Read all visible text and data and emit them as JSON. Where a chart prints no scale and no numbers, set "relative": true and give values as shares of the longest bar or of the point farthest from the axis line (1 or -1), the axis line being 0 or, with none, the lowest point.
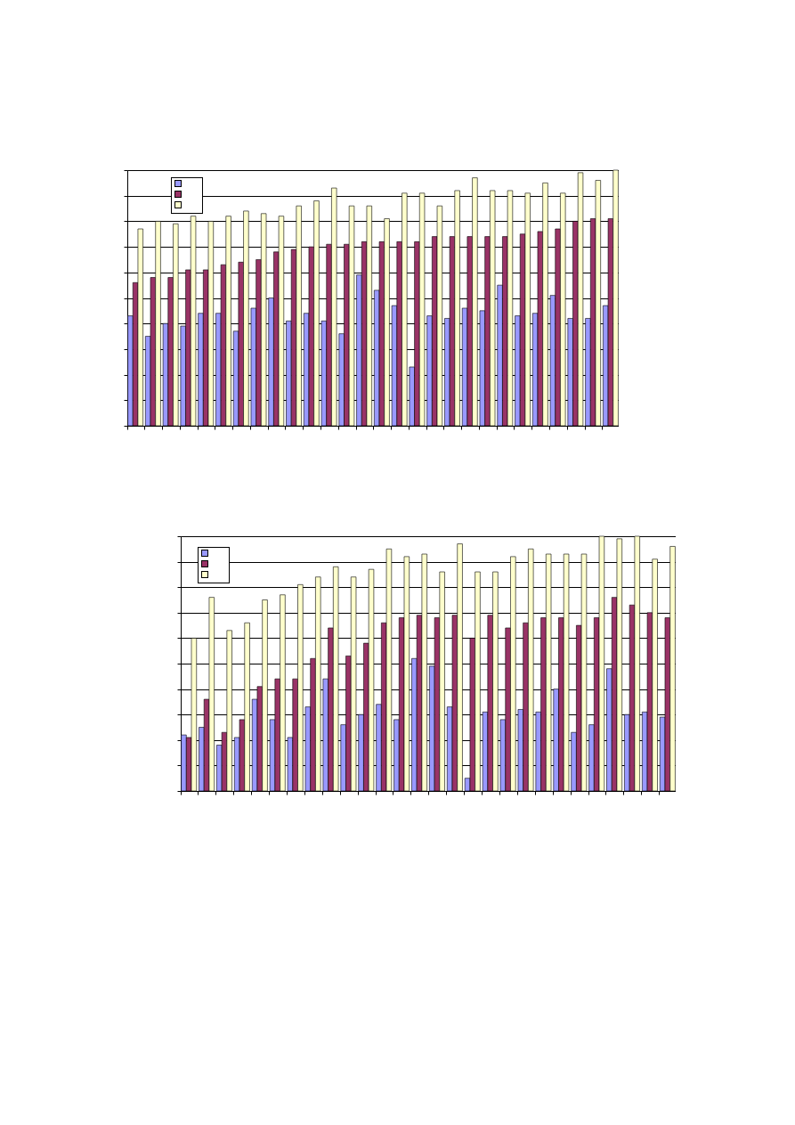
{
  "chart_data": [
    {
      "type": "bar",
      "relative": true,
      "grid": "y",
      "categories": [
        null,
        null,
        null,
        null,
        null,
        null,
        null,
        null,
        null,
        null,
        null,
        null,
        null,
        null,
        null,
        null,
        null,
        null,
        null,
        null,
        null,
        null,
        null,
        null,
        null,
        null,
        null,
        null
      ],
      "series": [
        {
          "color": "#9999ff",
          "values": [
            0.43,
            0.35,
            0.4,
            0.39,
            0.44,
            0.44,
            0.37,
            0.46,
            0.5,
            0.41,
            0.44,
            0.41,
            0.36,
            0.59,
            0.53,
            0.47,
            0.23,
            0.43,
            0.42,
            0.46,
            0.45,
            0.55,
            0.43,
            0.44,
            0.51,
            0.42,
            0.42,
            0.47
          ]
        },
        {
          "color": "#993366",
          "values": [
            0.56,
            0.58,
            0.58,
            0.61,
            0.61,
            0.63,
            0.64,
            0.65,
            0.68,
            0.69,
            0.7,
            0.71,
            0.71,
            0.72,
            0.72,
            0.72,
            0.72,
            0.74,
            0.74,
            0.74,
            0.74,
            0.74,
            0.75,
            0.76,
            0.77,
            0.8,
            0.81,
            0.81
          ]
        },
        {
          "color": "#ffffcc",
          "values": [
            0.77,
            0.8,
            0.79,
            0.82,
            0.8,
            0.82,
            0.84,
            0.83,
            0.82,
            0.86,
            0.88,
            0.93,
            0.86,
            0.86,
            0.81,
            0.91,
            0.91,
            0.86,
            0.92,
            0.97,
            0.92,
            0.92,
            0.91,
            0.95,
            0.91,
            0.99,
            0.96,
            1
          ]
        }
      ]
    },
    {
      "type": "bar",
      "relative": true,
      "grid": "y",
      "categories": [
        null,
        null,
        null,
        null,
        null,
        null,
        null,
        null,
        null,
        null,
        null,
        null,
        null,
        null,
        null,
        null,
        null,
        null,
        null,
        null,
        null,
        null,
        null,
        null,
        null,
        null,
        null,
        null
      ],
      "series": [
        {
          "color": "#9999ff",
          "values": [
            0.22,
            0.25,
            0.18,
            0.21,
            0.36,
            0.28,
            0.21,
            0.33,
            0.44,
            0.26,
            0.3,
            0.34,
            0.28,
            0.52,
            0.49,
            0.33,
            0.05,
            0.31,
            0.28,
            0.32,
            0.31,
            0.4,
            0.23,
            0.26,
            0.48,
            0.3,
            0.31,
            0.29
          ]
        },
        {
          "color": "#993366",
          "values": [
            0.21,
            0.36,
            0.23,
            0.28,
            0.41,
            0.44,
            0.44,
            0.52,
            0.64,
            0.53,
            0.58,
            0.66,
            0.68,
            0.69,
            0.68,
            0.69,
            0.6,
            0.69,
            0.64,
            0.66,
            0.68,
            0.68,
            0.65,
            0.68,
            0.76,
            0.73,
            0.7,
            0.68
          ]
        },
        {
          "color": "#ffffcc",
          "values": [
            0.6,
            0.76,
            0.63,
            0.66,
            0.75,
            0.77,
            0.81,
            0.84,
            0.88,
            0.84,
            0.87,
            0.95,
            0.92,
            0.93,
            0.86,
            0.97,
            0.86,
            0.86,
            0.92,
            0.95,
            0.93,
            0.93,
            0.93,
            1,
            0.99,
            1,
            0.91,
            0.96
          ]
        }
      ]
    }
  ]
}
